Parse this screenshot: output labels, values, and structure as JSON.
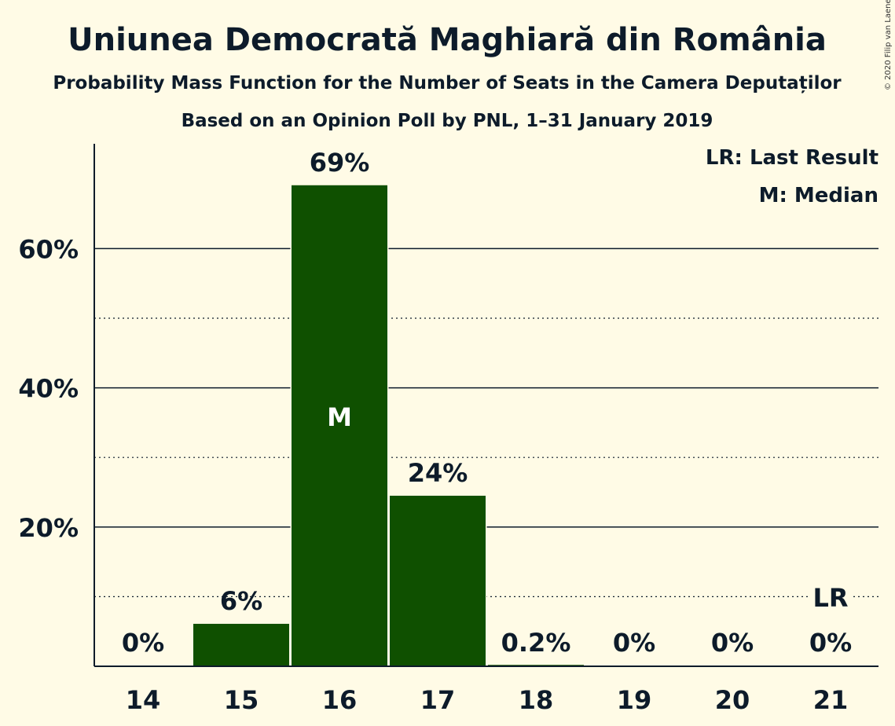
{
  "chart_data": {
    "type": "bar",
    "title": "Uniunea Democrată Maghiară din România",
    "subtitle": "Probability Mass Function for the Number of Seats in the Camera Deputaților",
    "subtitle2": "Based on an Opinion Poll by PNL, 1–31 January 2019",
    "copyright": "© 2020 Filip van Laenen",
    "categories": [
      "14",
      "15",
      "16",
      "17",
      "18",
      "19",
      "20",
      "21"
    ],
    "values": [
      0,
      6.1,
      69.1,
      24.5,
      0.2,
      0,
      0,
      0
    ],
    "value_labels": [
      "0%",
      "6%",
      "69%",
      "24%",
      "0.2%",
      "0%",
      "0%",
      "0%"
    ],
    "ylim": [
      0,
      75
    ],
    "yticks_major": [
      20,
      40,
      60
    ],
    "ytick_labels": [
      "20%",
      "40%",
      "60%"
    ],
    "yticks_minor": [
      10,
      30,
      50
    ],
    "median_category": "16",
    "median_marker": "M",
    "last_result_category": "21",
    "last_result_marker": "LR",
    "legend": [
      "LR: Last Result",
      "M: Median"
    ],
    "legend_position": "top-right",
    "bar_color": "#0f5000",
    "background_color": "#fffbe6",
    "text_color": "#0d1b2a"
  }
}
